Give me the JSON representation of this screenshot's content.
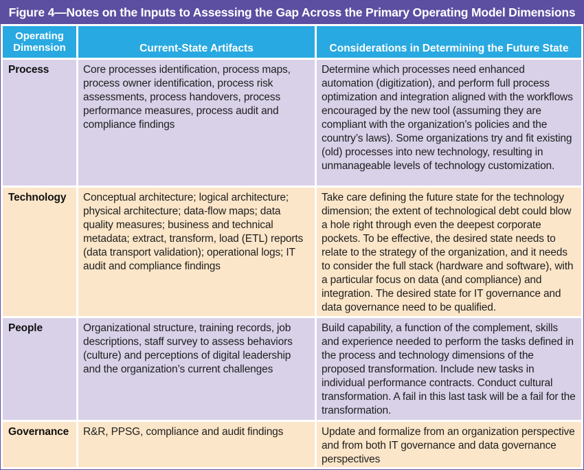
{
  "figure": {
    "title": "Figure 4—Notes on the Inputs to Assessing the Gap Across the Primary Operating Model Dimensions"
  },
  "table": {
    "headers": {
      "dimension_line1": "Operating",
      "dimension_line2": "Dimension",
      "artifacts": "Current-State Artifacts",
      "considerations": "Considerations in Determining the Future State"
    },
    "rows": [
      {
        "dimension": "Process",
        "artifacts": "Core processes identification, process maps, process owner identification, process risk assessments, process handovers, process performance measures, process audit and compliance findings",
        "considerations": "Determine which processes need enhanced automation (digitization), and perform full process optimization and integration aligned with the workflows encouraged by the new tool (assuming they are compliant with the organization’s policies and the country’s laws). Some organizations try and fit existing (old) processes into new technology, resulting in unmanageable levels of technology customization."
      },
      {
        "dimension": "Technology",
        "artifacts": "Conceptual architecture; logical architecture; physical architecture; data-flow maps; data quality measures; business and technical metadata; extract, transform, load (ETL) reports (data transport validation); operational logs; IT audit and compliance findings",
        "considerations": "Take care defining the future state for the technology dimension; the extent of technological debt could blow a hole right through even the deepest corporate pockets. To be effective, the desired state needs to relate to the strategy of the organization, and it needs to consider the full stack (hardware and software), with a particular focus on data (and compliance) and integration. The desired state for IT governance and data governance need to be qualified."
      },
      {
        "dimension": "People",
        "artifacts": "Organizational structure, training records, job descriptions, staff survey to assess behaviors (culture) and perceptions of digital leadership and the organization’s current challenges",
        "considerations": "Build capability, a function of the complement, skills and experience needed to perform the tasks defined in the process and technology dimensions of the proposed transformation. Include new tasks in individual performance contracts. Conduct cultural transformation. A fail in this last task will be a fail for the transformation."
      },
      {
        "dimension": "Governance",
        "artifacts": "R&R, PPSG, compliance and audit findings",
        "considerations": "Update and formalize from an organization perspective and from both IT governance and data governance perspectives"
      }
    ]
  },
  "colors": {
    "title_bg": "#5c4ea0",
    "header_bg": "#29a9e1",
    "row_purple": "#d8d1e8",
    "row_peach": "#fce6c9"
  }
}
